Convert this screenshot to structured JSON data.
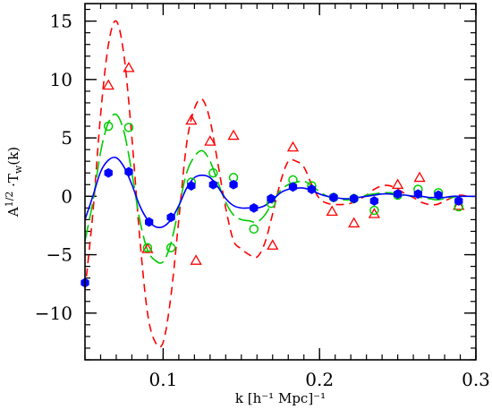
{
  "chart_data": {
    "type": "line",
    "title": "",
    "xlabel": "k [h⁻¹ Mpc]⁻¹",
    "ylabel_main": "A",
    "ylabel_sup": "1/2",
    "ylabel_mid": " ·T",
    "ylabel_sub": "w",
    "ylabel_tail": "(k)",
    "xlim": [
      0.05,
      0.3
    ],
    "ylim": [
      -14,
      16.5
    ],
    "x_ticks": [
      {
        "value": 0.1,
        "label": "0.1"
      },
      {
        "value": 0.2,
        "label": "0.2"
      },
      {
        "value": 0.3,
        "label": "0.3"
      }
    ],
    "y_ticks": [
      {
        "value": -10,
        "label": "−10"
      },
      {
        "value": -5,
        "label": "−5"
      },
      {
        "value": 0,
        "label": "0"
      },
      {
        "value": 5,
        "label": "5"
      },
      {
        "value": 10,
        "label": "10"
      },
      {
        "value": 15,
        "label": "15"
      }
    ],
    "x_minor_step": 0.01,
    "y_minor_step": 1,
    "series": [
      {
        "style": "dashed",
        "color": "#ff0000",
        "x": [
          0.05,
          0.055,
          0.06,
          0.065,
          0.07,
          0.075,
          0.08,
          0.085,
          0.09,
          0.095,
          0.1,
          0.105,
          0.11,
          0.115,
          0.12,
          0.125,
          0.13,
          0.135,
          0.14,
          0.145,
          0.15,
          0.155,
          0.16,
          0.165,
          0.17,
          0.175,
          0.18,
          0.185,
          0.19,
          0.195,
          0.2,
          0.205,
          0.21,
          0.215,
          0.22,
          0.225,
          0.23,
          0.235,
          0.24,
          0.245,
          0.25,
          0.255,
          0.26,
          0.265,
          0.27,
          0.275,
          0.28,
          0.285,
          0.29,
          0.295,
          0.3
        ],
        "y": [
          -8.0,
          -1.5,
          7.0,
          13.0,
          15.0,
          12.0,
          5.0,
          -3.5,
          -10.0,
          -12.5,
          -12.5,
          -8.5,
          -2.0,
          4.5,
          7.5,
          8.3,
          6.5,
          2.8,
          -1.0,
          -3.8,
          -4.5,
          -5.0,
          -5.2,
          -4.0,
          -1.5,
          1.2,
          3.0,
          3.0,
          2.5,
          1.0,
          -0.2,
          -0.6,
          -0.7,
          -0.7,
          -0.6,
          -0.3,
          0.1,
          0.6,
          0.9,
          0.9,
          0.6,
          0.2,
          -0.1,
          -0.5,
          -0.7,
          -0.7,
          -0.4,
          -0.1,
          0.1,
          0.0,
          0.0
        ]
      },
      {
        "style": "longdash",
        "color": "#00cc00",
        "x": [
          0.05,
          0.055,
          0.06,
          0.065,
          0.07,
          0.075,
          0.08,
          0.085,
          0.09,
          0.095,
          0.1,
          0.105,
          0.11,
          0.115,
          0.12,
          0.125,
          0.13,
          0.135,
          0.14,
          0.145,
          0.15,
          0.155,
          0.16,
          0.165,
          0.17,
          0.175,
          0.18,
          0.185,
          0.19,
          0.195,
          0.2,
          0.205,
          0.21,
          0.215,
          0.22,
          0.225,
          0.23,
          0.235,
          0.24,
          0.245,
          0.25,
          0.255,
          0.26,
          0.265,
          0.27,
          0.275,
          0.28,
          0.285,
          0.29,
          0.295,
          0.3
        ],
        "y": [
          -3.8,
          -0.5,
          3.8,
          6.3,
          7.0,
          5.5,
          2.0,
          -2.0,
          -4.6,
          -5.5,
          -5.6,
          -4.0,
          -1.0,
          2.0,
          3.4,
          3.9,
          3.0,
          1.2,
          -0.5,
          -1.6,
          -2.0,
          -2.1,
          -2.2,
          -1.6,
          -0.5,
          0.5,
          1.0,
          1.2,
          1.3,
          0.9,
          0.4,
          0.0,
          -0.2,
          -0.3,
          -0.3,
          -0.1,
          0.1,
          0.2,
          0.3,
          0.3,
          0.2,
          0.1,
          0.0,
          -0.1,
          -0.2,
          -0.3,
          -0.2,
          -0.1,
          0.0,
          0.0,
          0.0
        ]
      },
      {
        "style": "solid",
        "color": "#0000ff",
        "x": [
          0.05,
          0.055,
          0.06,
          0.065,
          0.07,
          0.075,
          0.08,
          0.085,
          0.09,
          0.095,
          0.1,
          0.105,
          0.11,
          0.115,
          0.12,
          0.125,
          0.13,
          0.135,
          0.14,
          0.145,
          0.15,
          0.155,
          0.16,
          0.165,
          0.17,
          0.175,
          0.18,
          0.185,
          0.19,
          0.195,
          0.2,
          0.205,
          0.21,
          0.215,
          0.22,
          0.225,
          0.23,
          0.235,
          0.24,
          0.245,
          0.25,
          0.255,
          0.26,
          0.265,
          0.27,
          0.275,
          0.28,
          0.285,
          0.29,
          0.295,
          0.3
        ],
        "y": [
          -2.0,
          0.0,
          2.1,
          3.1,
          3.3,
          2.5,
          1.0,
          -0.8,
          -2.0,
          -2.6,
          -2.6,
          -2.0,
          -0.8,
          0.7,
          1.6,
          1.8,
          1.6,
          0.8,
          -0.2,
          -0.8,
          -1.0,
          -1.0,
          -1.0,
          -0.8,
          -0.3,
          0.3,
          0.6,
          0.7,
          0.7,
          0.5,
          0.2,
          0.0,
          -0.1,
          -0.2,
          -0.2,
          -0.1,
          0.0,
          0.1,
          0.2,
          0.2,
          0.1,
          0.1,
          0.0,
          0.0,
          -0.1,
          -0.1,
          -0.1,
          0.0,
          0.0,
          0.0,
          0.0
        ]
      }
    ],
    "markers": [
      {
        "shape": "triangle",
        "color": "#ff0000",
        "x": [
          0.065,
          0.078,
          0.09,
          0.118,
          0.121,
          0.13,
          0.145,
          0.17,
          0.183,
          0.208,
          0.222,
          0.235,
          0.25,
          0.264,
          0.289
        ],
        "y": [
          9.5,
          11.0,
          -4.5,
          6.5,
          -5.5,
          4.7,
          5.2,
          -4.2,
          4.2,
          -1.3,
          -2.3,
          -1.5,
          1.0,
          1.6,
          -0.8
        ]
      },
      {
        "shape": "circle",
        "color": "#00cc00",
        "x": [
          0.065,
          0.078,
          0.09,
          0.105,
          0.118,
          0.132,
          0.145,
          0.158,
          0.169,
          0.183,
          0.195,
          0.209,
          0.222,
          0.235,
          0.25,
          0.263,
          0.276,
          0.289
        ],
        "y": [
          6.0,
          5.9,
          -4.4,
          -4.4,
          1.2,
          2.0,
          1.6,
          -2.8,
          -0.6,
          1.4,
          0.9,
          -0.1,
          -0.2,
          -1.2,
          0.1,
          0.6,
          0.3,
          -0.9
        ]
      },
      {
        "shape": "hexagon",
        "color": "#0000ff",
        "x": [
          0.05,
          0.065,
          0.078,
          0.091,
          0.105,
          0.118,
          0.132,
          0.145,
          0.158,
          0.169,
          0.183,
          0.195,
          0.209,
          0.222,
          0.235,
          0.25,
          0.263,
          0.276,
          0.289
        ],
        "y": [
          -7.4,
          2.0,
          2.1,
          -2.2,
          -1.8,
          0.9,
          1.0,
          1.0,
          -1.0,
          -0.2,
          0.8,
          0.6,
          -0.1,
          -0.2,
          -0.4,
          0.2,
          0.2,
          0.1,
          -0.4
        ]
      }
    ]
  }
}
